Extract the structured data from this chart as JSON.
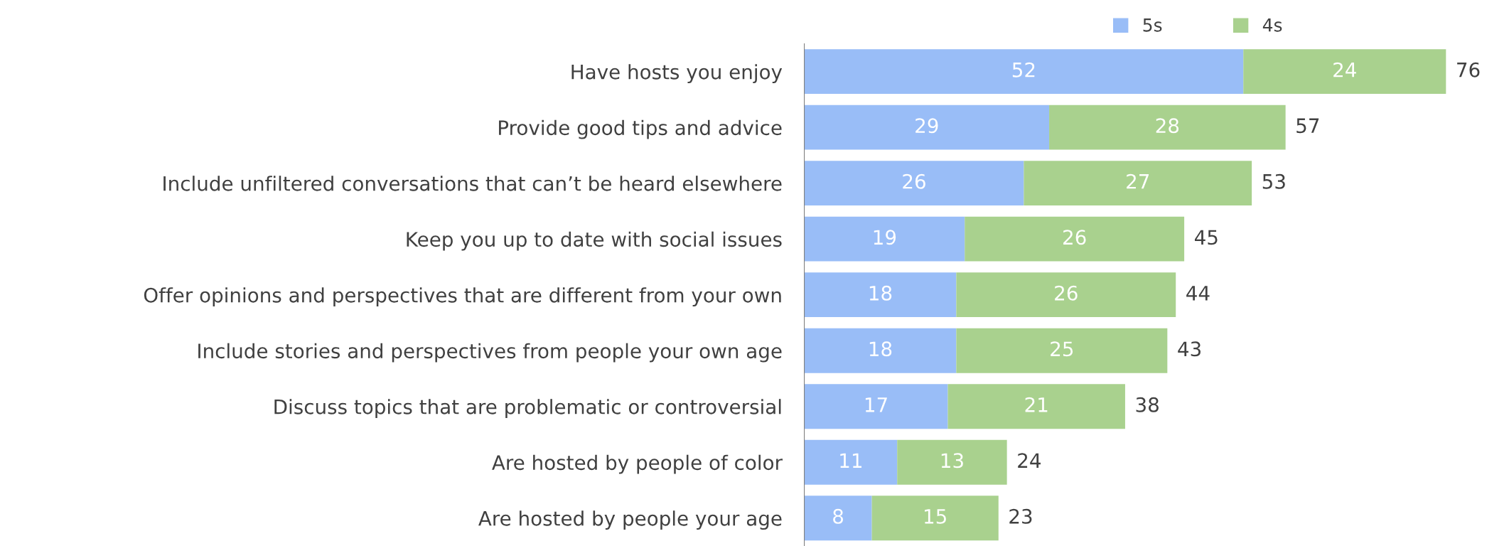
{
  "chart_data": {
    "type": "bar",
    "orientation": "horizontal",
    "stacked": true,
    "data_labels": true,
    "legend": "top right",
    "grid": false,
    "categories": [
      "Have hosts you enjoy",
      "Provide good tips and advice",
      "Include unfiltered conversations that can’t be heard elsewhere",
      "Keep you up to date with social issues",
      "Offer opinions and perspectives that are different from your own",
      "Include stories and perspectives from people your own age",
      "Discuss topics that are problematic or controversial",
      "Are hosted by people of color",
      "Are hosted by people your age"
    ],
    "series": [
      {
        "name": "5s",
        "color": "#99bdf7",
        "values": [
          52,
          29,
          26,
          19,
          18,
          18,
          17,
          11,
          8
        ]
      },
      {
        "name": "4s",
        "color": "#a9d18e",
        "values": [
          24,
          28,
          27,
          26,
          26,
          25,
          21,
          13,
          15
        ]
      }
    ],
    "totals": [
      "76",
      "57",
      "53",
      "45",
      "44",
      "43",
      "38",
      "24",
      "23"
    ]
  }
}
